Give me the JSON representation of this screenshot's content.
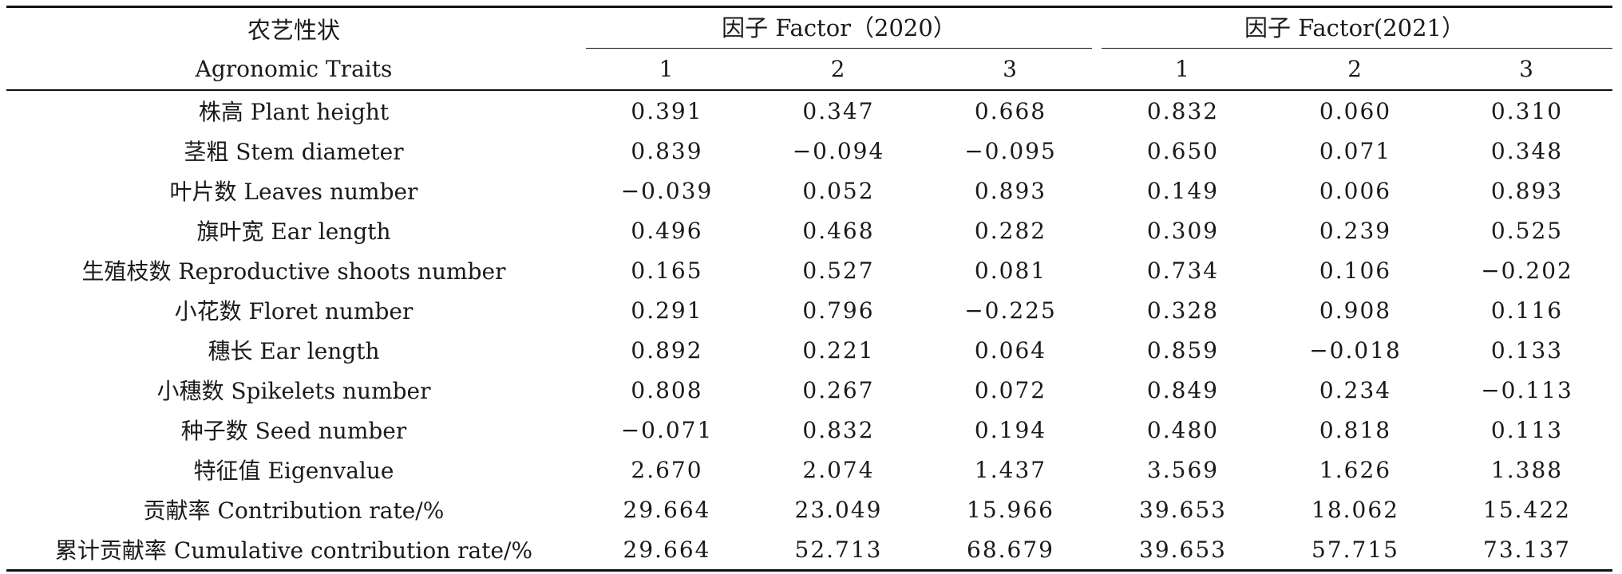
{
  "header": {
    "trait_zh": "农艺性状",
    "trait_en": "Agronomic Traits",
    "group_2020": "因子 Factor（2020）",
    "group_2021": "因子 Factor(2021）",
    "factors_2020": [
      "1",
      "2",
      "3"
    ],
    "factors_2021": [
      "1",
      "2",
      "3"
    ]
  },
  "rows": [
    {
      "trait": "株高 Plant height",
      "values": [
        "0.391",
        "0.347",
        "0.668",
        "0.832",
        "0.060",
        "0.310"
      ]
    },
    {
      "trait": "茎粗 Stem diameter",
      "values": [
        "0.839",
        "−0.094",
        "−0.095",
        "0.650",
        "0.071",
        "0.348"
      ]
    },
    {
      "trait": "叶片数 Leaves number",
      "values": [
        "−0.039",
        "0.052",
        "0.893",
        "0.149",
        "0.006",
        "0.893"
      ]
    },
    {
      "trait": "旗叶宽 Ear length",
      "values": [
        "0.496",
        "0.468",
        "0.282",
        "0.309",
        "0.239",
        "0.525"
      ]
    },
    {
      "trait": "生殖枝数 Reproductive shoots number",
      "values": [
        "0.165",
        "0.527",
        "0.081",
        "0.734",
        "0.106",
        "−0.202"
      ]
    },
    {
      "trait": "小花数 Floret number",
      "values": [
        "0.291",
        "0.796",
        "−0.225",
        "0.328",
        "0.908",
        "0.116"
      ]
    },
    {
      "trait": "穗长 Ear length",
      "values": [
        "0.892",
        "0.221",
        "0.064",
        "0.859",
        "−0.018",
        "0.133"
      ]
    },
    {
      "trait": "小穗数 Spikelets number",
      "values": [
        "0.808",
        "0.267",
        "0.072",
        "0.849",
        "0.234",
        "−0.113"
      ]
    },
    {
      "trait": "种子数 Seed number",
      "values": [
        "−0.071",
        "0.832",
        "0.194",
        "0.480",
        "0.818",
        "0.113"
      ]
    },
    {
      "trait": "特征值 Eigenvalue",
      "values": [
        "2.670",
        "2.074",
        "1.437",
        "3.569",
        "1.626",
        "1.388"
      ]
    },
    {
      "trait": "贡献率 Contribution rate/%",
      "values": [
        "29.664",
        "23.049",
        "15.966",
        "39.653",
        "18.062",
        "15.422"
      ]
    },
    {
      "trait": "累计贡献率 Cumulative contribution rate/%",
      "values": [
        "29.664",
        "52.713",
        "68.679",
        "39.653",
        "57.715",
        "73.137"
      ]
    }
  ]
}
